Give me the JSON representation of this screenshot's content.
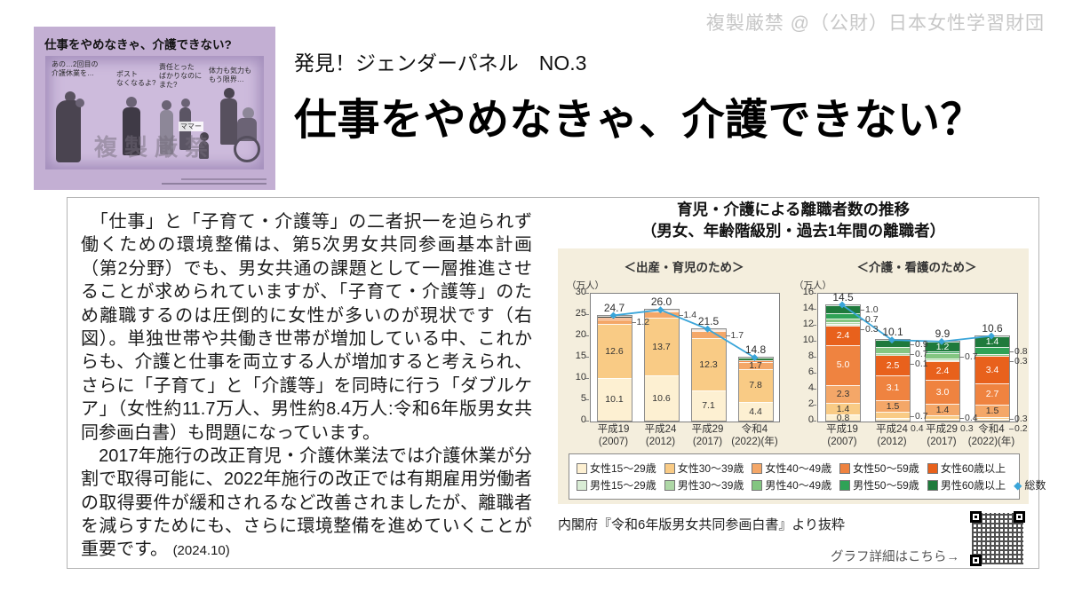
{
  "watermark": "複製厳禁 @（公財）日本女性学習財団",
  "illustration": {
    "title": "仕事をやめなきゃ、介護できない?",
    "bubbles": [
      "あの…2回目の\n介護休業を…",
      "ポスト\nなくなるよ?",
      "責任とった\nばかりなのに\nまた?",
      "体力も気力も\nもう限界…"
    ],
    "child_cry": "ママー",
    "stamp": "複製厳禁"
  },
  "header": {
    "kicker": "発見！ジェンダーパネル　NO.3",
    "title": "仕事をやめなきゃ、介護できない？"
  },
  "body": {
    "p1": "　「仕事」と「子育て・介護等」の二者択一を迫られず働くための環境整備は、第5次男女共同参画基本計画（第2分野）でも、男女共通の課題として一層推進させることが求められていますが、「子育て・介護等」のため離職するのは圧倒的に女性が多いのが現状です（右図）。単独世帯や共働き世帯が増加している中、これからも、介護と仕事を両立する人が増加すると考えられ、さらに「子育て」と「介護等」を同時に行う「ダブルケア」（女性約11.7万人、男性約8.4万人:令和6年版男女共同参画白書）も問題になっています。",
    "p2": "　2017年施行の改正育児・介護休業法では介護休業が分割で取得可能に、2022年施行の改正では有期雇用労働者の取得要件が緩和されるなど改善されましたが、離職者を減らすためにも、さらに環境整備を進めていくことが重要です。",
    "p2_date": "(2024.10)"
  },
  "figure": {
    "title_line1": "育児・介護による離職者数の推移",
    "title_line2": "（男女、年齢階級別・過去1年間の離職者）",
    "source": "内閣府『令和6年版男女共同参画白書』より抜粋",
    "qr_caption": "グラフ詳細はこちら→"
  },
  "legend": {
    "rows": [
      [
        {
          "label": "女性15～29歳",
          "color": "#fdf0d2"
        },
        {
          "label": "女性30～39歳",
          "color": "#f9cb85"
        },
        {
          "label": "女性40～49歳",
          "color": "#f4a768"
        },
        {
          "label": "女性50～59歳",
          "color": "#ef8340"
        },
        {
          "label": "女性60歳以上",
          "color": "#e8611c"
        }
      ],
      [
        {
          "label": "男性15～29歳",
          "color": "#d9ecd5"
        },
        {
          "label": "男性30～39歳",
          "color": "#aed7a6"
        },
        {
          "label": "男性40～49歳",
          "color": "#83c581"
        },
        {
          "label": "男性50～59歳",
          "color": "#2fa256"
        },
        {
          "label": "男性60歳以上",
          "color": "#1f7a3c"
        },
        {
          "label": "総数",
          "color": "#3aa5d9",
          "marker": "diamond"
        }
      ]
    ]
  },
  "chart_data": [
    {
      "type": "bar",
      "subtitle": "＜出産・育児のため＞",
      "unit": "（万人）",
      "ylim": [
        0,
        30
      ],
      "yticks": [
        0,
        5,
        10,
        15,
        20,
        25,
        30
      ],
      "categories": [
        "平成19\n(2007)",
        "平成24\n(2012)",
        "平成29\n(2017)",
        "令和4\n(2022)(年)"
      ],
      "totals": [
        24.7,
        26.0,
        21.5,
        14.8
      ],
      "line_series": "総数",
      "line_color": "#3aa5d9",
      "bars": [
        {
          "segments": [
            {
              "name": "女性15～29歳",
              "value": 10.1,
              "label": "10.1",
              "pos": "in"
            },
            {
              "name": "女性30～39歳",
              "value": 12.6,
              "label": "12.6",
              "pos": "in"
            },
            {
              "name": "女性40～49歳",
              "value": 1.2,
              "label": "1.2",
              "pos": "right"
            },
            {
              "name": "女性50～59歳",
              "value": 0.4
            },
            {
              "value": 0.4,
              "color": "#3c3c30"
            }
          ]
        },
        {
          "segments": [
            {
              "name": "女性15～29歳",
              "value": 10.6,
              "label": "10.6",
              "pos": "in"
            },
            {
              "name": "女性30～39歳",
              "value": 13.7,
              "label": "13.7",
              "pos": "in"
            },
            {
              "name": "女性40～49歳",
              "value": 1.4,
              "label": "1.4",
              "pos": "right"
            },
            {
              "name": "女性50～59歳",
              "value": 0.1
            },
            {
              "value": 0.2,
              "color": "#3c3c30"
            }
          ]
        },
        {
          "segments": [
            {
              "name": "女性15～29歳",
              "value": 7.1,
              "label": "7.1",
              "pos": "in"
            },
            {
              "name": "女性30～39歳",
              "value": 12.3,
              "label": "12.3",
              "pos": "in"
            },
            {
              "name": "女性40～49歳",
              "value": 1.7,
              "label": "1.7",
              "pos": "right"
            },
            {
              "name": "女性50～59歳",
              "value": 0.2
            },
            {
              "value": 0.2,
              "color": "#3c3c30"
            }
          ]
        },
        {
          "segments": [
            {
              "name": "女性15～29歳",
              "value": 4.4,
              "label": "4.4",
              "pos": "in"
            },
            {
              "name": "女性30～39歳",
              "value": 7.8,
              "label": "7.8",
              "pos": "in"
            },
            {
              "name": "女性40～49歳",
              "value": 1.7,
              "label": "1.7",
              "pos": "in"
            },
            {
              "name": "女性50～59歳",
              "value": 0.3
            },
            {
              "value": 0.6,
              "color": "#2e7d3e"
            }
          ]
        }
      ]
    },
    {
      "type": "bar",
      "subtitle": "＜介護・看護のため＞",
      "unit": "（万人）",
      "ylim": [
        0,
        16
      ],
      "yticks": [
        0,
        2,
        4,
        6,
        8,
        10,
        12,
        14,
        16
      ],
      "categories": [
        "平成19\n(2007)",
        "平成24\n(2012)",
        "平成29\n(2017)",
        "令和4\n(2022)(年)"
      ],
      "totals": [
        14.5,
        10.1,
        9.9,
        10.6
      ],
      "line_series": "総数",
      "line_color": "#3aa5d9",
      "bars": [
        {
          "segments": [
            {
              "name": "女性15～29歳",
              "value": 0.8,
              "label": "0.8",
              "pos": "in"
            },
            {
              "name": "女性30～39歳",
              "value": 1.4,
              "label": "1.4",
              "pos": "in"
            },
            {
              "name": "女性40～49歳",
              "value": 2.3,
              "label": "2.3",
              "pos": "in"
            },
            {
              "name": "女性50～59歳",
              "value": 5.0,
              "label": "5.0",
              "pos": "in"
            },
            {
              "name": "女性60歳以上",
              "value": 2.4,
              "label": "2.4",
              "pos": "in"
            },
            {
              "name": "男性15～29歳",
              "value": 0.2
            },
            {
              "name": "男性30～39歳",
              "value": 0.3,
              "label": "0.3",
              "pos": "right"
            },
            {
              "name": "男性40～49歳",
              "value": 0.4
            },
            {
              "name": "男性50～59歳",
              "value": 0.7,
              "label": "0.7",
              "pos": "right"
            },
            {
              "name": "男性60歳以上",
              "value": 1.0,
              "label": "1.0",
              "pos": "right"
            }
          ]
        },
        {
          "segments": [
            {
              "name": "女性15～29歳",
              "value": 0.4,
              "label": "0.4",
              "pos": "bottom"
            },
            {
              "name": "女性30～39歳",
              "value": 0.7,
              "label": "0.7",
              "pos": "right"
            },
            {
              "name": "女性40～49歳",
              "value": 1.5,
              "label": "1.5",
              "pos": "in"
            },
            {
              "name": "女性50～59歳",
              "value": 3.1,
              "label": "3.1",
              "pos": "in"
            },
            {
              "name": "女性60歳以上",
              "value": 2.5,
              "label": "2.5",
              "pos": "in"
            },
            {
              "name": "男性15～29歳",
              "value": 0.1,
              "label": "0.1",
              "pos": "right"
            },
            {
              "name": "男性30～39歳",
              "value": 0.2
            },
            {
              "name": "男性40～49歳",
              "value": 0.7,
              "label": "0.7",
              "pos": "right"
            },
            {
              "name": "男性60歳以上",
              "value": 0.9,
              "label": "0.9",
              "pos": "right"
            }
          ]
        },
        {
          "segments": [
            {
              "name": "女性15～29歳",
              "value": 0.3,
              "label": "0.3",
              "pos": "bottom"
            },
            {
              "name": "女性30～39歳",
              "value": 0.4,
              "label": "0.4",
              "pos": "right"
            },
            {
              "name": "女性40～49歳",
              "value": 1.4,
              "label": "1.4",
              "pos": "in"
            },
            {
              "name": "女性50～59歳",
              "value": 3.0,
              "label": "3.0",
              "pos": "in"
            },
            {
              "name": "女性60歳以上",
              "value": 2.4,
              "label": "2.4",
              "pos": "in"
            },
            {
              "name": "男性15～29歳",
              "value": 0.1
            },
            {
              "name": "男性30～39歳",
              "value": 0.2
            },
            {
              "name": "男性40～49歳",
              "value": 0.7,
              "label": "0.7",
              "pos": "right"
            },
            {
              "name": "男性50～59歳",
              "value": 0.2
            },
            {
              "name": "男性60歳以上",
              "value": 1.2,
              "label": "1.2",
              "pos": "in"
            }
          ]
        },
        {
          "segments": [
            {
              "name": "女性15～29歳",
              "value": 0.2,
              "label": "0.2",
              "pos": "right"
            },
            {
              "name": "女性30～39歳",
              "value": 0.3,
              "label": "0.3",
              "pos": "right"
            },
            {
              "name": "女性40～49歳",
              "value": 1.5,
              "label": "1.5",
              "pos": "in"
            },
            {
              "name": "女性50～59歳",
              "value": 2.7,
              "label": "2.7",
              "pos": "in"
            },
            {
              "name": "女性60歳以上",
              "value": 3.4,
              "label": "3.4",
              "pos": "in"
            },
            {
              "name": "男性40～49歳",
              "value": 0.3,
              "label": "0.3",
              "pos": "right"
            },
            {
              "name": "男性50～59歳",
              "value": 0.8,
              "label": "0.8",
              "pos": "right"
            },
            {
              "name": "男性60歳以上",
              "value": 1.4,
              "label": "1.4",
              "pos": "in"
            }
          ]
        }
      ]
    }
  ]
}
